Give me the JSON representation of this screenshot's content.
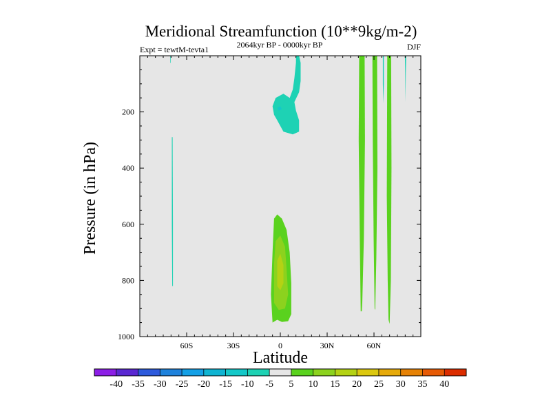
{
  "chart_data": {
    "type": "contour",
    "title": "Meridional Streamfunction (10**9kg/m-2)",
    "left_label": "Expt = tewtM-tevta1",
    "center_label": "2064kyr BP - 0000kyr BP",
    "right_label": "DJF",
    "xlabel": "Latitude",
    "ylabel": "Pressure (in hPa)",
    "xlim": [
      -90,
      90
    ],
    "ylim": [
      1000,
      0
    ],
    "xticks": [
      {
        "value": -60,
        "label": "60S"
      },
      {
        "value": -30,
        "label": "30S"
      },
      {
        "value": 0,
        "label": "0"
      },
      {
        "value": 30,
        "label": "30N"
      },
      {
        "value": 60,
        "label": "60N"
      }
    ],
    "yticks": [
      {
        "value": 200,
        "label": "200"
      },
      {
        "value": 400,
        "label": "400"
      },
      {
        "value": 600,
        "label": "600"
      },
      {
        "value": 800,
        "label": "800"
      },
      {
        "value": 1000,
        "label": "1000"
      }
    ],
    "background_color": "#e6e6e6",
    "colorbar": {
      "levels": [
        "-40",
        "-35",
        "-30",
        "-25",
        "-20",
        "-15",
        "-10",
        "-5",
        "5",
        "10",
        "15",
        "20",
        "25",
        "30",
        "35",
        "40"
      ],
      "colors": [
        "#8c1ee6",
        "#5a28d2",
        "#2d5adc",
        "#1e82dc",
        "#14a0e6",
        "#0fb4d2",
        "#14c8c8",
        "#1ed2b4",
        "#e6e6e6",
        "#5ad21e",
        "#8cd21e",
        "#b4d214",
        "#dcc80f",
        "#e6aa0a",
        "#e68205",
        "#e65a05",
        "#dc2d00"
      ]
    },
    "regions": [
      {
        "name": "sh-upper-negative-cell",
        "value": "-10 to -5",
        "color": "#1ed2b4",
        "points": [
          [
            -4,
            210
          ],
          [
            -5,
            180
          ],
          [
            -3,
            150
          ],
          [
            2,
            135
          ],
          [
            6,
            150
          ],
          [
            8,
            120
          ],
          [
            9,
            80
          ],
          [
            10,
            25
          ],
          [
            10,
            0
          ],
          [
            12,
            0
          ],
          [
            13,
            25
          ],
          [
            13,
            90
          ],
          [
            12,
            130
          ],
          [
            9,
            165
          ],
          [
            10,
            195
          ],
          [
            12,
            230
          ],
          [
            12,
            270
          ],
          [
            8,
            280
          ],
          [
            2,
            270
          ],
          [
            0,
            250
          ],
          [
            -2,
            230
          ]
        ]
      },
      {
        "name": "sh-upper-core",
        "value": "-15 to -10",
        "color": "#14c8c8",
        "points": [
          [
            -2,
            185
          ],
          [
            0,
            180
          ],
          [
            1,
            190
          ],
          [
            -1,
            195
          ]
        ]
      },
      {
        "name": "eq-positive-cell",
        "value": "5 to 10",
        "color": "#5ad21e",
        "points": [
          [
            -5,
            950
          ],
          [
            -6,
            850
          ],
          [
            -5,
            700
          ],
          [
            -4,
            580
          ],
          [
            -2,
            565
          ],
          [
            1,
            580
          ],
          [
            4,
            620
          ],
          [
            6,
            700
          ],
          [
            7,
            810
          ],
          [
            7,
            920
          ],
          [
            5,
            945
          ],
          [
            1,
            948
          ],
          [
            -2,
            940
          ]
        ]
      },
      {
        "name": "eq-positive-inner",
        "value": "10 to 15",
        "color": "#8cd21e",
        "points": [
          [
            -4,
            880
          ],
          [
            -4,
            740
          ],
          [
            -3,
            660
          ],
          [
            0,
            640
          ],
          [
            3,
            680
          ],
          [
            4,
            760
          ],
          [
            5,
            850
          ],
          [
            3,
            900
          ],
          [
            -1,
            905
          ]
        ]
      },
      {
        "name": "eq-positive-core",
        "value": "15 to 20",
        "color": "#b4d214",
        "points": [
          [
            -2,
            820
          ],
          [
            -2,
            730
          ],
          [
            0,
            705
          ],
          [
            2,
            745
          ],
          [
            2,
            810
          ],
          [
            0,
            835
          ]
        ]
      },
      {
        "name": "sh-lat-strip-65s",
        "value": "-10 to -5",
        "color": "#1ed2b4",
        "points": [
          [
            -69.5,
            290
          ],
          [
            -69,
            290
          ],
          [
            -68.8,
            600
          ],
          [
            -68.8,
            820
          ],
          [
            -69.2,
            820
          ],
          [
            -69.5,
            600
          ]
        ]
      },
      {
        "name": "nh-strip-52n",
        "value": "5 to 10",
        "color": "#5ad21e",
        "points": [
          [
            50.5,
            0
          ],
          [
            54,
            0
          ],
          [
            54.2,
            300
          ],
          [
            53.5,
            650
          ],
          [
            52.5,
            880
          ],
          [
            52.2,
            910
          ],
          [
            51.5,
            910
          ],
          [
            51,
            700
          ],
          [
            50.2,
            300
          ]
        ]
      },
      {
        "name": "nh-strip-60n",
        "value": "5 to 10",
        "color": "#5ad21e",
        "points": [
          [
            59,
            0
          ],
          [
            62,
            0
          ],
          [
            62.2,
            400
          ],
          [
            61.5,
            720
          ],
          [
            60.8,
            905
          ],
          [
            60.4,
            900
          ],
          [
            59.8,
            650
          ],
          [
            59.2,
            300
          ]
        ]
      },
      {
        "name": "nh-strip-71n",
        "value": "5 to 10",
        "color": "#5ad21e",
        "points": [
          [
            68.5,
            0
          ],
          [
            71,
            0
          ],
          [
            71.2,
            400
          ],
          [
            70.8,
            800
          ],
          [
            70,
            955
          ],
          [
            69.3,
            940
          ],
          [
            68.8,
            800
          ],
          [
            68.2,
            500
          ]
        ]
      },
      {
        "name": "nh-strip-66n-thin",
        "value": "-10 to -5",
        "color": "#1ed2b4",
        "points": [
          [
            65.7,
            0
          ],
          [
            66.3,
            0
          ],
          [
            66.3,
            100
          ],
          [
            66,
            170
          ],
          [
            65.7,
            100
          ]
        ]
      },
      {
        "name": "nh-strip-80n-thin",
        "value": "-10 to -5",
        "color": "#1ed2b4",
        "points": [
          [
            79.8,
            0
          ],
          [
            80.6,
            0
          ],
          [
            80.4,
            60
          ],
          [
            80.2,
            165
          ],
          [
            80,
            60
          ]
        ]
      },
      {
        "name": "sh-dot-70s",
        "value": "-10 to -5",
        "color": "#1ed2b4",
        "points": [
          [
            -70.5,
            0
          ],
          [
            -70.2,
            0
          ],
          [
            -70.2,
            25
          ],
          [
            -70.5,
            25
          ]
        ]
      }
    ]
  }
}
